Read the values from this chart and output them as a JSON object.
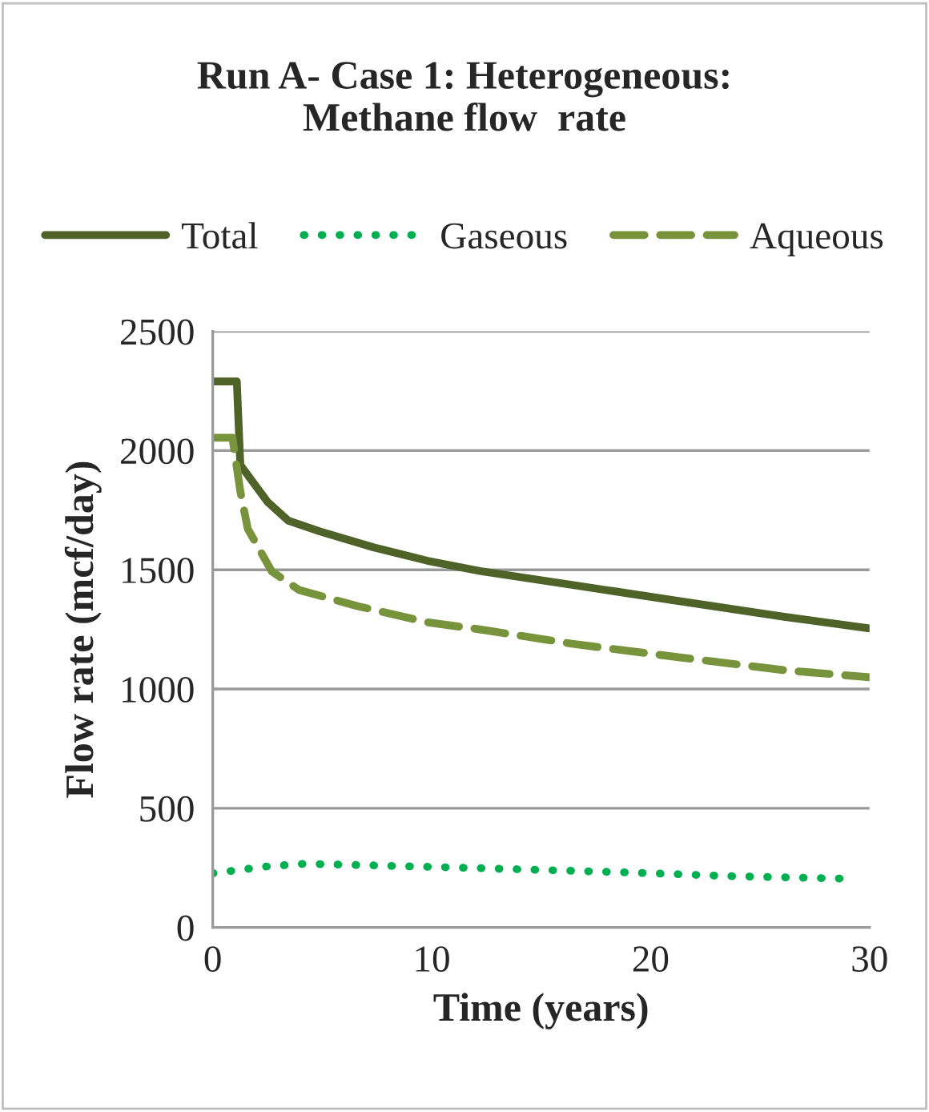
{
  "chart_data": {
    "type": "line",
    "title": "Run A- Case 1: Heterogeneous:\nMethane flow  rate",
    "xlabel": "Time (years)",
    "ylabel": "Flow rate (mcf/day)",
    "xlim": [
      0,
      30
    ],
    "xticks": [
      0,
      10,
      20,
      30
    ],
    "ylim": [
      0,
      2500
    ],
    "yticks": [
      0,
      500,
      1000,
      1500,
      2000,
      2500
    ],
    "grid": "y",
    "legend": "top",
    "series": [
      {
        "name": "Total",
        "color": "#4f6228",
        "line_style": "solid",
        "x": [
          0,
          1.1,
          1.26,
          2.5,
          3.45,
          4.9,
          7.35,
          9.8,
          12.2,
          16.4,
          21.2,
          26.1,
          30
        ],
        "values": [
          2290,
          2290,
          1940,
          1785,
          1706,
          1661,
          1594,
          1538,
          1495,
          1437,
          1370,
          1303,
          1254
        ]
      },
      {
        "name": "Gaseous",
        "color": "#00b050",
        "line_style": "dotted",
        "x": [
          0,
          2.5,
          4.2,
          7.35,
          12,
          18.8,
          23.7,
          29.1
        ],
        "values": [
          227,
          256,
          267,
          260,
          249,
          231,
          215,
          204
        ]
      },
      {
        "name": "Aqueous",
        "color": "#77933c",
        "line_style": "dashed",
        "x": [
          0,
          0.9,
          1.26,
          1.6,
          2.7,
          3.95,
          6.6,
          9.8,
          12.2,
          16.4,
          21.2,
          26.1,
          30
        ],
        "values": [
          2054,
          2054,
          1829,
          1672,
          1493,
          1415,
          1348,
          1280,
          1250,
          1190,
          1134,
          1079,
          1049
        ]
      }
    ]
  }
}
